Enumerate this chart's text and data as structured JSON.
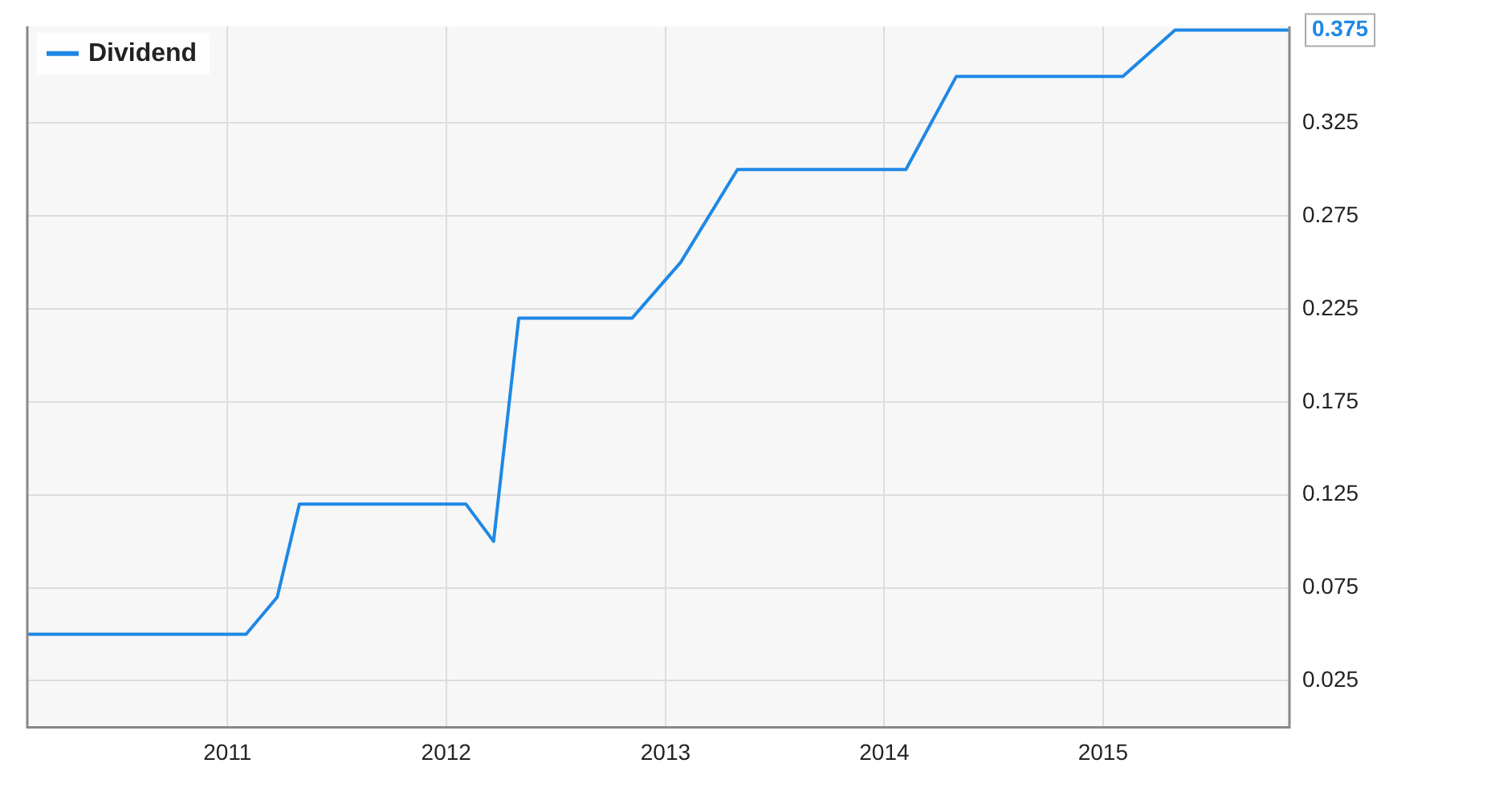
{
  "chart_data": {
    "type": "line",
    "x": [
      "2010-02-01",
      "2011-02-01",
      "2011-03-25",
      "2011-05-01",
      "2012-02-03",
      "2012-03-20",
      "2012-05-01",
      "2012-11-06",
      "2013-01-26",
      "2013-05-01",
      "2014-02-06",
      "2014-05-01",
      "2015-02-03",
      "2015-05-01",
      "2015-11-08"
    ],
    "series": [
      {
        "name": "Dividend",
        "color": "#1e88e5",
        "values": [
          0.05,
          0.05,
          0.07,
          0.12,
          0.12,
          0.1,
          0.22,
          0.22,
          0.25,
          0.3,
          0.3,
          0.35,
          0.35,
          0.375,
          0.375
        ],
        "value_labels": [
          null,
          null,
          null,
          null,
          null,
          null,
          null,
          null,
          null,
          null,
          null,
          null,
          null,
          null,
          "0.375"
        ]
      }
    ],
    "xlim": [
      "2010-02-01",
      "2015-11-08"
    ],
    "xticks": [
      "2011",
      "2012",
      "2013",
      "2014",
      "2015"
    ],
    "ylim": [
      0,
      0.377
    ],
    "yticks": [
      0.025,
      0.075,
      0.125,
      0.175,
      0.225,
      0.275,
      0.325
    ],
    "grid": true,
    "legend": "top left",
    "marker": "none",
    "line_style": "solid"
  }
}
